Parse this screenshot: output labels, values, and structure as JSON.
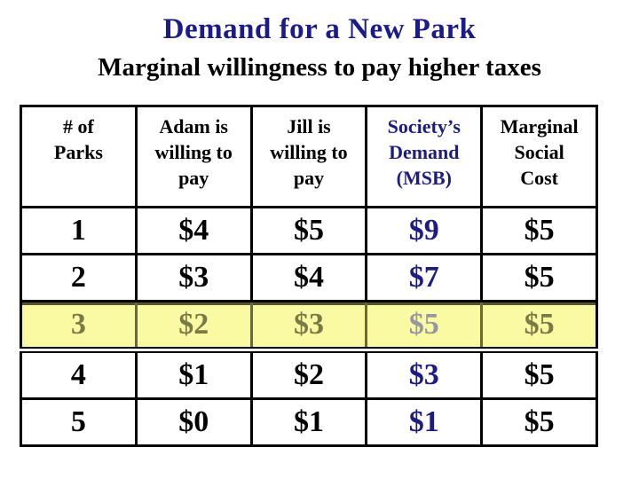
{
  "slide": {
    "title": "Demand for a New Park",
    "subtitle": "Marginal willingness to pay higher taxes"
  },
  "colors": {
    "title_navy": "#1b1b8b",
    "table_navy": "#1c1c84",
    "hl_bg": "#fafaa2",
    "hl_text": "#7a7a48",
    "hl_msb": "#9696a5",
    "hl_border": "#6a6a38",
    "hl_edge": "#55552c"
  },
  "table": {
    "columns": [
      {
        "label": "# of\nParks"
      },
      {
        "label": "Adam is\nwilling to\npay"
      },
      {
        "label": "Jill is\nwilling to\npay"
      },
      {
        "label": "Society’s\nDemand\n(MSB)"
      },
      {
        "label": "Marginal\nSocial\nCost"
      }
    ],
    "rows": [
      {
        "highlighted": false,
        "cells": [
          "1",
          "$4",
          "$5",
          "$9",
          "$5"
        ]
      },
      {
        "highlighted": false,
        "cells": [
          "2",
          "$3",
          "$4",
          "$7",
          "$5"
        ]
      },
      {
        "highlighted": true,
        "cells": [
          "3",
          "$2",
          "$3",
          "$5",
          "$5"
        ]
      },
      {
        "highlighted": false,
        "cells": [
          "4",
          "$1",
          "$2",
          "$3",
          "$5"
        ]
      },
      {
        "highlighted": false,
        "cells": [
          "5",
          "$0",
          "$1",
          "$1",
          "$5"
        ]
      }
    ]
  }
}
